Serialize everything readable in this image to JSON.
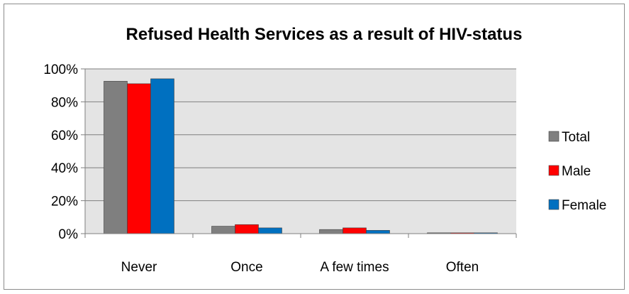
{
  "chart_data": {
    "type": "bar",
    "title": "Refused Health Services as a result of HIV-status",
    "xlabel": "",
    "ylabel": "",
    "categories": [
      "Never",
      "Once",
      "A few times",
      "Often"
    ],
    "series": [
      {
        "name": "Total",
        "color": "#7f7f7f",
        "values": [
          92.5,
          4.5,
          2.5,
          0.5
        ]
      },
      {
        "name": "Male",
        "color": "#ff0000",
        "values": [
          91.0,
          5.5,
          3.5,
          0.5
        ]
      },
      {
        "name": "Female",
        "color": "#0070c0",
        "values": [
          94.0,
          3.5,
          2.0,
          0.5
        ]
      }
    ],
    "ylim": [
      0,
      100
    ],
    "yticks": [
      "0%",
      "20%",
      "40%",
      "60%",
      "80%",
      "100%"
    ],
    "ytick_values": [
      0,
      20,
      40,
      60,
      80,
      100
    ],
    "grid": true,
    "plot_background": "#e4e4e4",
    "legend_position": "right"
  }
}
